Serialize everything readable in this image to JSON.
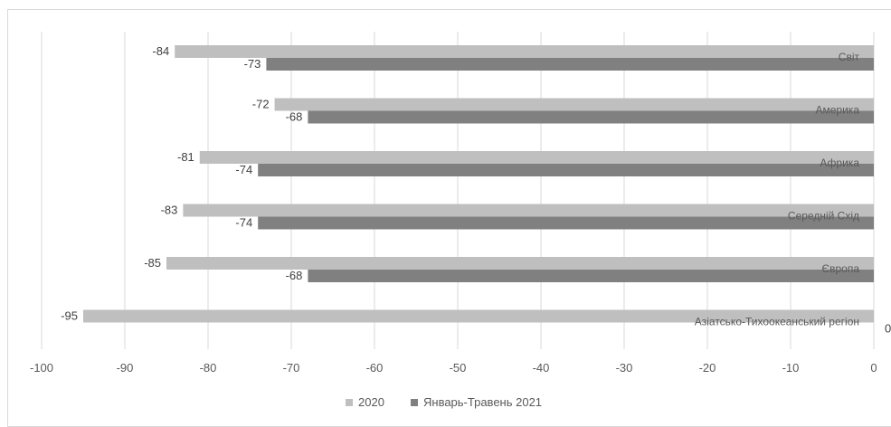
{
  "chart_data": {
    "type": "bar",
    "orientation": "horizontal",
    "categories": [
      "Світ",
      "Америка",
      "Африка",
      "Середній Схід",
      "Європа",
      "Азіатсько-Тихоокеанський регіон"
    ],
    "series": [
      {
        "name": "2020",
        "color": "#bfbfbf",
        "values": [
          -84,
          -72,
          -81,
          -83,
          -85,
          -95
        ]
      },
      {
        "name": "Январь-Травень 2021",
        "color": "#808080",
        "values": [
          -73,
          -68,
          -74,
          -74,
          -68,
          0
        ]
      }
    ],
    "xlim": [
      -100,
      0
    ],
    "xticks": [
      "-100",
      "-90",
      "-80",
      "-70",
      "-60",
      "-50",
      "-40",
      "-30",
      "-20",
      "-10",
      "0"
    ],
    "grid": true,
    "legend": "bottom",
    "title": "",
    "xlabel": "",
    "ylabel": ""
  }
}
